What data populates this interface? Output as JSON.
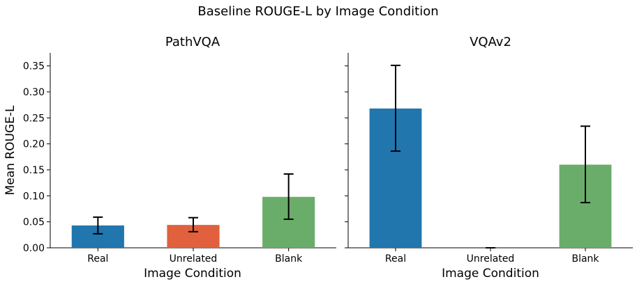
{
  "figure": {
    "title": "Baseline ROUGE-L by Image Condition"
  },
  "chart_data": [
    {
      "type": "bar",
      "title": "PathVQA",
      "xlabel": "Image Condition",
      "ylabel": "Mean ROUGE-L",
      "categories": [
        "Real",
        "Unrelated",
        "Blank"
      ],
      "values": [
        0.043,
        0.044,
        0.098
      ],
      "error_low": [
        0.027,
        0.031,
        0.055
      ],
      "error_high": [
        0.059,
        0.058,
        0.142
      ],
      "colors": [
        "#2176ae",
        "#e1603d",
        "#6aad6a"
      ],
      "ylim": [
        0,
        0.375
      ],
      "yticks": [
        "0.00",
        "0.05",
        "0.10",
        "0.15",
        "0.20",
        "0.25",
        "0.30",
        "0.35"
      ],
      "grid": false
    },
    {
      "type": "bar",
      "title": "VQAv2",
      "xlabel": "Image Condition",
      "ylabel": "",
      "categories": [
        "Real",
        "Unrelated",
        "Blank"
      ],
      "values": [
        0.268,
        0.0,
        0.16
      ],
      "error_low": [
        0.186,
        0.0,
        0.087
      ],
      "error_high": [
        0.351,
        0.0,
        0.234
      ],
      "colors": [
        "#2176ae",
        "#e1603d",
        "#6aad6a"
      ],
      "ylim": [
        0,
        0.375
      ],
      "yticks": [
        "0.00",
        "0.05",
        "0.10",
        "0.15",
        "0.20",
        "0.25",
        "0.30",
        "0.35"
      ],
      "grid": false
    }
  ]
}
